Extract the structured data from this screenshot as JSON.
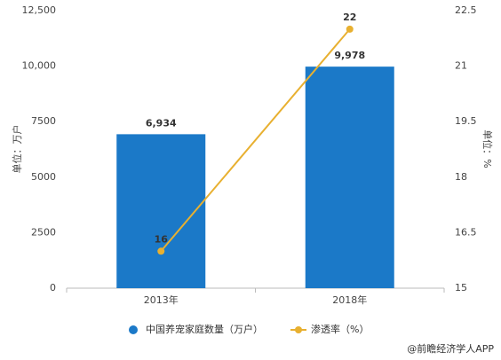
{
  "chart_data": {
    "type": "bar_line",
    "categories": [
      "2013年",
      "2018年"
    ],
    "series": [
      {
        "name": "中国养宠家庭数量（万户）",
        "type": "bar",
        "color": "#1b79c8",
        "values": [
          6934,
          9978
        ],
        "value_labels": [
          "6,934",
          "9,978"
        ]
      },
      {
        "name": "渗透率（%）",
        "type": "line",
        "axis": "y2",
        "color": "#e8b030",
        "values": [
          16,
          22
        ]
      }
    ],
    "ylabel": "单位：万户",
    "y2label": "单位：%",
    "ylim": [
      0,
      12500
    ],
    "yticks": [
      0,
      2500,
      5000,
      7500,
      {
        "value": 10000,
        "label": "10,000"
      },
      {
        "value": 12500,
        "label": "12,500"
      }
    ],
    "y2lim": [
      15,
      22.5
    ],
    "y2ticks": [
      15,
      16.5,
      18,
      19.5,
      21,
      22.5
    ],
    "legend": "bottom",
    "source": "@前瞻经济学人APP"
  }
}
